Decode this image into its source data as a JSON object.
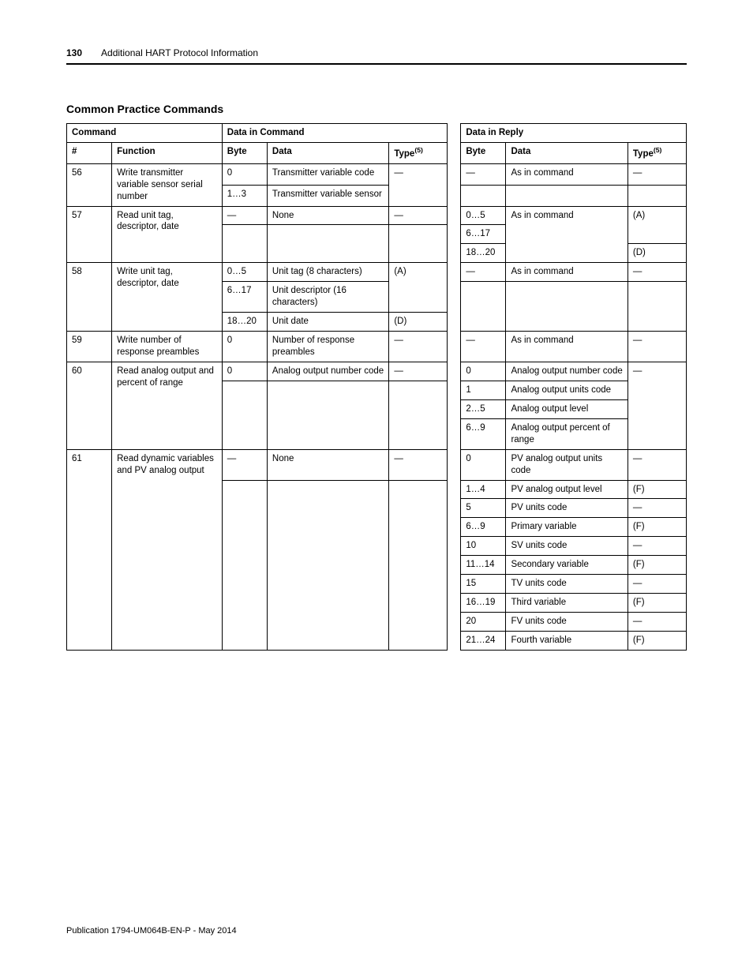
{
  "header": {
    "page_number": "130",
    "chapter_title": "Additional HART Protocol Information"
  },
  "section_title": "Common Practice Commands",
  "table": {
    "group_headers": {
      "command": "Command",
      "data_in_command": "Data in Command",
      "data_in_reply": "Data in Reply"
    },
    "sub_headers": {
      "num": "#",
      "function": "Function",
      "byte": "Byte",
      "data": "Data",
      "type": "Type",
      "type_sup": "(5)"
    },
    "rows": [
      {
        "num": "56",
        "function": "Write transmitter variable sensor serial number",
        "cmd": [
          {
            "byte": "0",
            "data": "Transmitter variable code",
            "type": "—"
          },
          {
            "byte": "1…3",
            "data": "Transmitter variable sensor"
          }
        ],
        "reply": [
          {
            "byte": "—",
            "data": "As in command",
            "type": "—"
          }
        ]
      },
      {
        "num": "57",
        "function": "Read unit tag, descriptor, date",
        "cmd": [
          {
            "byte": "—",
            "data": "None",
            "type": "—"
          }
        ],
        "reply": [
          {
            "byte": "0…5",
            "data": "As in command",
            "type": "(A)",
            "data_rowspan": 3
          },
          {
            "byte": "6…17"
          },
          {
            "byte": "18…20",
            "type": "(D)"
          }
        ]
      },
      {
        "num": "58",
        "function": "Write unit tag, descriptor, date",
        "cmd": [
          {
            "byte": "0…5",
            "data": "Unit tag (8 characters)",
            "type": "(A)"
          },
          {
            "byte": "6…17",
            "data": "Unit descriptor (16 characters)"
          },
          {
            "byte": "18…20",
            "data": "Unit date",
            "type": "(D)"
          }
        ],
        "reply": [
          {
            "byte": "—",
            "data": "As in command",
            "type": "—"
          }
        ]
      },
      {
        "num": "59",
        "function": "Write number of response preambles",
        "cmd": [
          {
            "byte": "0",
            "data": "Number of response preambles",
            "type": "—"
          }
        ],
        "reply": [
          {
            "byte": "—",
            "data": "As in command",
            "type": "—"
          }
        ]
      },
      {
        "num": "60",
        "function": "Read analog output and percent of range",
        "cmd": [
          {
            "byte": "0",
            "data": "Analog output number code",
            "type": "—"
          }
        ],
        "reply": [
          {
            "byte": "0",
            "data": "Analog output number code",
            "type": "—",
            "type_rowspan": 4
          },
          {
            "byte": "1",
            "data": "Analog output units code"
          },
          {
            "byte": "2…5",
            "data": "Analog output level"
          },
          {
            "byte": "6…9",
            "data": "Analog output percent of range"
          }
        ]
      },
      {
        "num": "61",
        "function": "Read dynamic variables and PV analog output",
        "cmd": [
          {
            "byte": "—",
            "data": "None",
            "type": "—"
          }
        ],
        "reply": [
          {
            "byte": "0",
            "data": "PV analog output units code",
            "type": "—"
          },
          {
            "byte": "1…4",
            "data": "PV analog output level",
            "type": "(F)"
          },
          {
            "byte": "5",
            "data": "PV units code",
            "type": "—"
          },
          {
            "byte": "6…9",
            "data": "Primary variable",
            "type": "(F)"
          },
          {
            "byte": "10",
            "data": "SV units code",
            "type": "—"
          },
          {
            "byte": "11…14",
            "data": "Secondary variable",
            "type": "(F)"
          },
          {
            "byte": "15",
            "data": "TV units code",
            "type": "—"
          },
          {
            "byte": "16…19",
            "data": "Third variable",
            "type": "(F)"
          },
          {
            "byte": "20",
            "data": "FV units code",
            "type": "—"
          },
          {
            "byte": "21…24",
            "data": "Fourth variable",
            "type": "(F)"
          }
        ]
      }
    ]
  },
  "footer": "Publication 1794-UM064B-EN-P - May 2014"
}
